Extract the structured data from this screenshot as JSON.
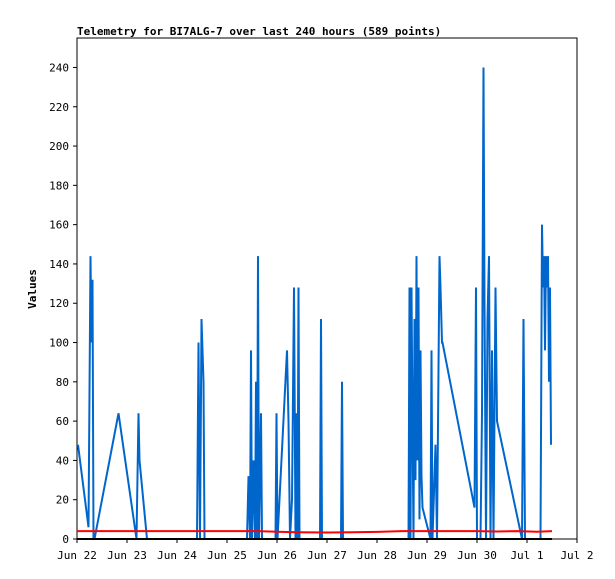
{
  "chart_data": {
    "type": "line",
    "title": "Telemetry for BI7ALG-7 over last 240 hours (589 points)",
    "xlabel": "",
    "ylabel": "Values",
    "xlim": [
      0,
      10
    ],
    "ylim": [
      0,
      255
    ],
    "x_ticks": [
      {
        "x": 0,
        "label": "Jun 22"
      },
      {
        "x": 1,
        "label": "Jun 23"
      },
      {
        "x": 2,
        "label": "Jun 24"
      },
      {
        "x": 3,
        "label": "Jun 25"
      },
      {
        "x": 4,
        "label": "Jun 26"
      },
      {
        "x": 5,
        "label": "Jun 27"
      },
      {
        "x": 6,
        "label": "Jun 28"
      },
      {
        "x": 7,
        "label": "Jun 29"
      },
      {
        "x": 8,
        "label": "Jun 30"
      },
      {
        "x": 9,
        "label": "Jul 1"
      },
      {
        "x": 10,
        "label": "Jul 2"
      }
    ],
    "y_ticks": [
      0,
      20,
      40,
      60,
      80,
      100,
      120,
      140,
      160,
      180,
      200,
      220,
      240
    ],
    "grid": false,
    "legend": "none",
    "series": [
      {
        "color": "#0066cc",
        "points": [
          [
            0.02,
            48
          ],
          [
            0.23,
            6
          ],
          [
            0.27,
            144
          ],
          [
            0.29,
            100
          ],
          [
            0.31,
            132
          ],
          [
            0.33,
            0
          ],
          [
            0.35,
            0
          ],
          [
            0.83,
            64
          ],
          [
            1.19,
            0
          ],
          [
            1.23,
            64
          ],
          [
            1.25,
            40
          ],
          [
            1.4,
            0
          ],
          [
            2.4,
            0
          ],
          [
            2.43,
            100
          ],
          [
            2.46,
            0
          ],
          [
            2.49,
            112
          ],
          [
            2.53,
            80
          ],
          [
            2.55,
            0
          ],
          [
            3.4,
            0
          ],
          [
            3.43,
            32
          ],
          [
            3.46,
            0
          ],
          [
            3.48,
            96
          ],
          [
            3.5,
            0
          ],
          [
            3.53,
            40
          ],
          [
            3.56,
            0
          ],
          [
            3.58,
            80
          ],
          [
            3.6,
            0
          ],
          [
            3.62,
            144
          ],
          [
            3.64,
            0
          ],
          [
            3.68,
            64
          ],
          [
            3.7,
            0
          ],
          [
            3.97,
            0
          ],
          [
            3.99,
            64
          ],
          [
            4.01,
            0
          ],
          [
            4.2,
            96
          ],
          [
            4.23,
            60
          ],
          [
            4.26,
            0
          ],
          [
            4.3,
            20
          ],
          [
            4.34,
            128
          ],
          [
            4.37,
            0
          ],
          [
            4.39,
            64
          ],
          [
            4.41,
            0
          ],
          [
            4.43,
            128
          ],
          [
            4.45,
            0
          ],
          [
            4.86,
            0
          ],
          [
            4.88,
            112
          ],
          [
            4.9,
            0
          ],
          [
            5.28,
            0
          ],
          [
            5.3,
            80
          ],
          [
            5.32,
            0
          ],
          [
            6.63,
            0
          ],
          [
            6.65,
            128
          ],
          [
            6.67,
            0
          ],
          [
            6.69,
            128
          ],
          [
            6.71,
            60
          ],
          [
            6.73,
            0
          ],
          [
            6.75,
            112
          ],
          [
            6.77,
            30
          ],
          [
            6.79,
            144
          ],
          [
            6.81,
            40
          ],
          [
            6.83,
            128
          ],
          [
            6.85,
            10
          ],
          [
            6.87,
            96
          ],
          [
            6.89,
            32
          ],
          [
            6.91,
            16
          ],
          [
            7.07,
            0
          ],
          [
            7.09,
            96
          ],
          [
            7.11,
            0
          ],
          [
            7.17,
            48
          ],
          [
            7.2,
            0
          ],
          [
            7.25,
            144
          ],
          [
            7.27,
            128
          ],
          [
            7.3,
            100
          ],
          [
            7.31,
            100
          ],
          [
            7.95,
            16
          ],
          [
            7.98,
            128
          ],
          [
            8.0,
            0
          ],
          [
            8.07,
            0
          ],
          [
            8.1,
            64
          ],
          [
            8.13,
            240
          ],
          [
            8.15,
            120
          ],
          [
            8.18,
            0
          ],
          [
            8.21,
            112
          ],
          [
            8.24,
            144
          ],
          [
            8.27,
            0
          ],
          [
            8.3,
            96
          ],
          [
            8.33,
            0
          ],
          [
            8.37,
            128
          ],
          [
            8.4,
            60
          ],
          [
            8.9,
            0
          ],
          [
            8.93,
            112
          ],
          [
            8.96,
            0
          ],
          [
            9.27,
            0
          ],
          [
            9.3,
            160
          ],
          [
            9.32,
            128
          ],
          [
            9.34,
            144
          ],
          [
            9.36,
            96
          ],
          [
            9.38,
            144
          ],
          [
            9.4,
            128
          ],
          [
            9.42,
            144
          ],
          [
            9.44,
            80
          ],
          [
            9.46,
            128
          ],
          [
            9.48,
            48
          ]
        ]
      },
      {
        "color": "#ff0000",
        "points": [
          [
            0,
            4
          ],
          [
            1,
            4
          ],
          [
            2,
            4
          ],
          [
            3,
            4
          ],
          [
            3.6,
            4
          ],
          [
            4.1,
            3.6
          ],
          [
            4.4,
            3.4
          ],
          [
            5,
            3.3
          ],
          [
            5.5,
            3.4
          ],
          [
            6,
            3.6
          ],
          [
            6.5,
            4
          ],
          [
            7,
            4
          ],
          [
            7.5,
            4
          ],
          [
            8,
            4
          ],
          [
            8.4,
            3.8
          ],
          [
            8.8,
            4
          ],
          [
            9.2,
            3.7
          ],
          [
            9.5,
            4
          ]
        ]
      },
      {
        "color": "#000000",
        "points": [
          [
            0,
            0
          ],
          [
            9.5,
            0
          ]
        ]
      }
    ]
  }
}
